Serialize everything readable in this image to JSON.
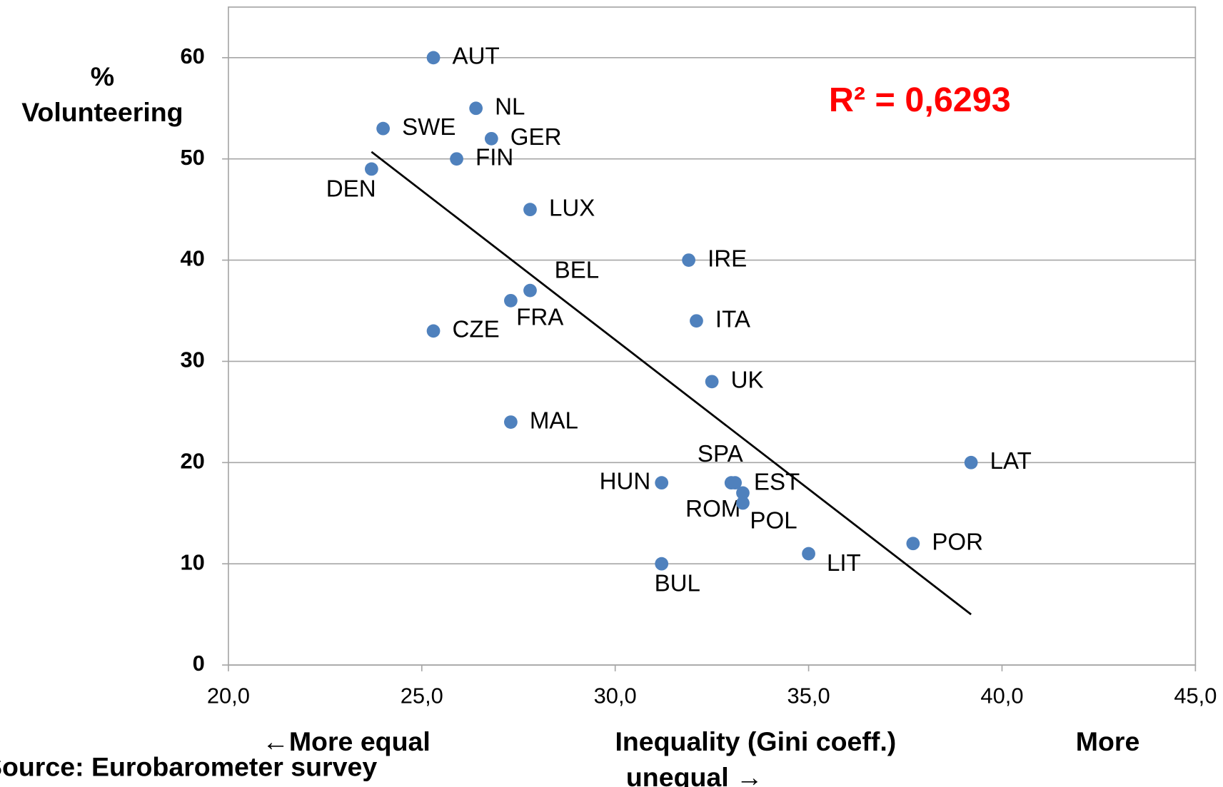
{
  "chart_data": {
    "type": "scatter",
    "y_label": [
      "%",
      "Volunteering"
    ],
    "x_label_parts": [
      "←More equal",
      "Inequality (Gini coeff.)",
      "More",
      "unequal →"
    ],
    "source": "Source: Eurobarometer survey",
    "annotation": "R² = 0,6293",
    "annotation_color": "#ff0000",
    "labels": [
      "AUT",
      "NL",
      "SWE",
      "GER",
      "FIN",
      "DEN",
      "LUX",
      "IRE",
      "BEL",
      "FRA",
      "CZE",
      "ITA",
      "UK",
      "MAL",
      "LAT",
      "HUN",
      "SPA",
      "ROM",
      "EST",
      "POL",
      "POR",
      "LIT",
      "BUL"
    ],
    "x": [
      25.3,
      26.4,
      24.0,
      26.8,
      25.9,
      23.7,
      27.8,
      31.9,
      27.8,
      27.3,
      25.3,
      32.1,
      32.5,
      27.3,
      39.2,
      31.2,
      33.0,
      33.1,
      33.3,
      33.3,
      37.7,
      35.0,
      31.2
    ],
    "y": [
      60,
      55,
      53,
      52,
      50,
      49,
      45,
      40,
      37,
      36,
      33,
      34,
      28,
      24,
      20,
      18,
      18,
      18,
      17,
      16,
      12,
      11,
      10
    ],
    "color": "#4f81bd",
    "trendline": {
      "x": [
        23.7,
        39.2
      ],
      "y": [
        50.7,
        5.0
      ],
      "color": "#000000"
    },
    "xlim": [
      20,
      45
    ],
    "xticks": [
      {
        "value": 20,
        "label": "20,0"
      },
      {
        "value": 25,
        "label": "25,0"
      },
      {
        "value": 30,
        "label": "30,0"
      },
      {
        "value": 35,
        "label": "35,0"
      },
      {
        "value": 40,
        "label": "40,0"
      },
      {
        "value": 45,
        "label": "45,0"
      }
    ],
    "ylim": [
      0,
      65
    ],
    "yticks": [
      0,
      10,
      20,
      30,
      40,
      50,
      60
    ],
    "grid": true
  }
}
